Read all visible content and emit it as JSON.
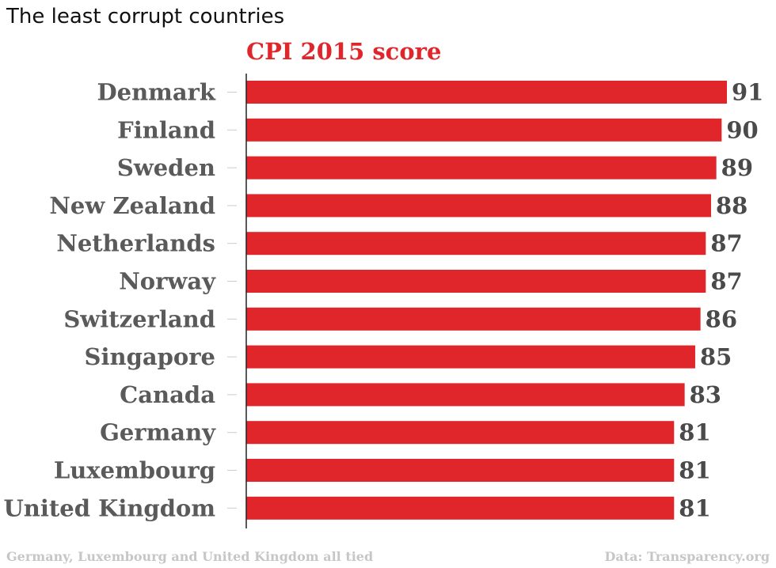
{
  "page": {
    "title": "The least corrupt countries",
    "footer_note": "Germany, Luxembourg and United Kingdom all tied",
    "footer_source": "Data: Transparency.org"
  },
  "chart_data": {
    "type": "bar",
    "orientation": "horizontal",
    "title": "CPI 2015 score",
    "categories": [
      "Denmark",
      "Finland",
      "Sweden",
      "New Zealand",
      "Netherlands",
      "Norway",
      "Switzerland",
      "Singapore",
      "Canada",
      "Germany",
      "Luxembourg",
      "United Kingdom"
    ],
    "values": [
      91,
      90,
      89,
      88,
      87,
      87,
      86,
      85,
      83,
      81,
      81,
      81
    ],
    "xlim": [
      0,
      91
    ],
    "grid": false,
    "legend": "none",
    "colors": {
      "bar": "#e0262a",
      "category_label": "#5a5a5a",
      "value_label": "#4a4a4a",
      "tick": "#cccccc",
      "axis": "#222222",
      "title": "#e0262a"
    }
  }
}
